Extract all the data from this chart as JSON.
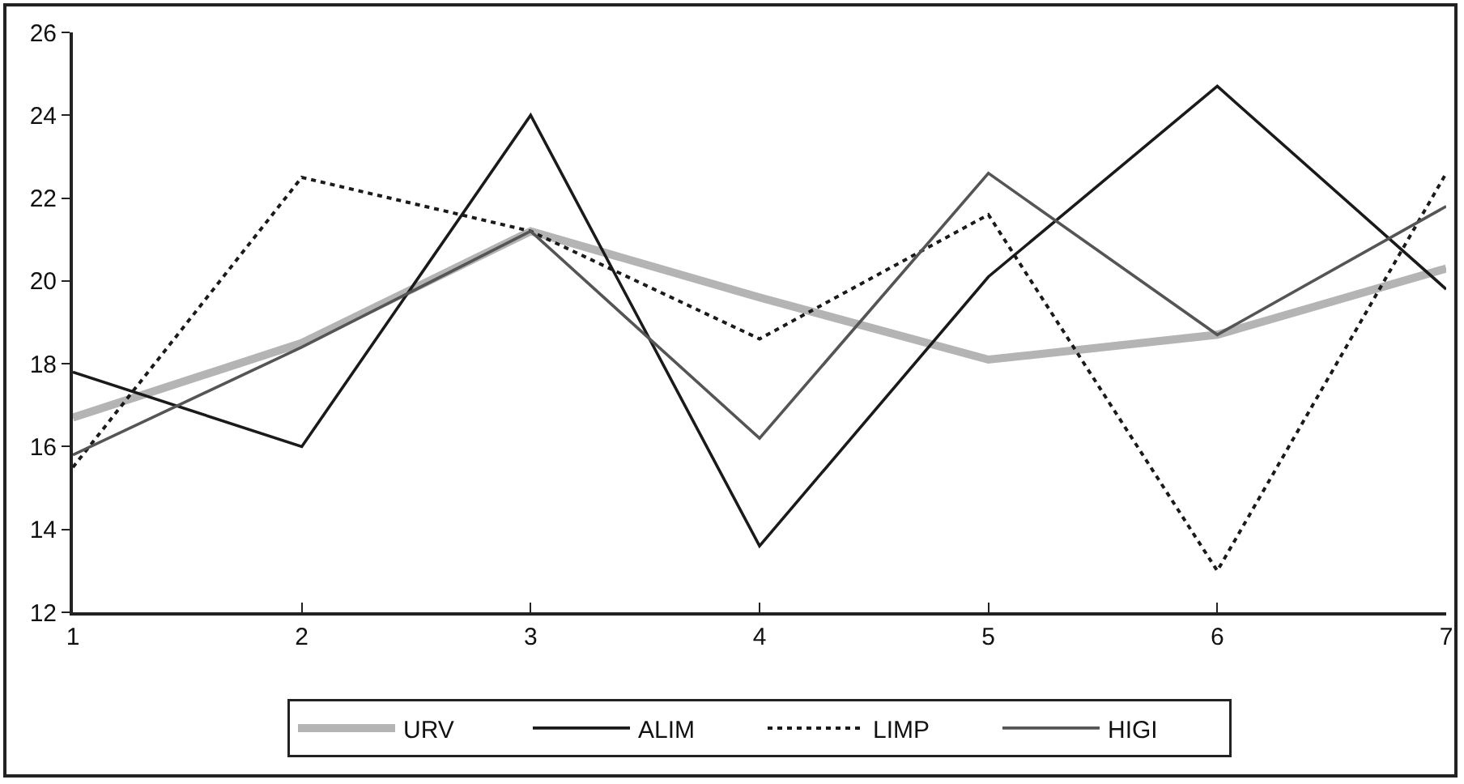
{
  "chart_data": {
    "type": "line",
    "x": [
      1,
      2,
      3,
      4,
      5,
      6,
      7
    ],
    "xlim": [
      1,
      7
    ],
    "xticks": [
      1,
      2,
      3,
      4,
      5,
      6,
      7
    ],
    "ylim": [
      12,
      26
    ],
    "yticks": [
      12,
      14,
      16,
      18,
      20,
      22,
      24,
      26
    ],
    "grid": false,
    "legend": "bottom",
    "marker": "none",
    "series": [
      {
        "name": "URV",
        "color": "#b4b4b4",
        "line_style": "solid",
        "values": [
          16.7,
          18.5,
          21.2,
          19.6,
          18.1,
          18.7,
          20.3
        ]
      },
      {
        "name": "ALIM",
        "color": "#1a1a1a",
        "line_style": "solid",
        "values": [
          17.8,
          16.0,
          24.0,
          13.6,
          20.1,
          24.7,
          19.8
        ]
      },
      {
        "name": "LIMP",
        "color": "#1a1a1a",
        "line_style": "dotted",
        "values": [
          15.5,
          22.5,
          21.2,
          18.6,
          21.6,
          13.0,
          22.6
        ]
      },
      {
        "name": "HIGI",
        "color": "#555555",
        "line_style": "solid",
        "values": [
          15.8,
          18.4,
          21.2,
          16.2,
          22.6,
          18.7,
          21.8
        ]
      }
    ]
  }
}
